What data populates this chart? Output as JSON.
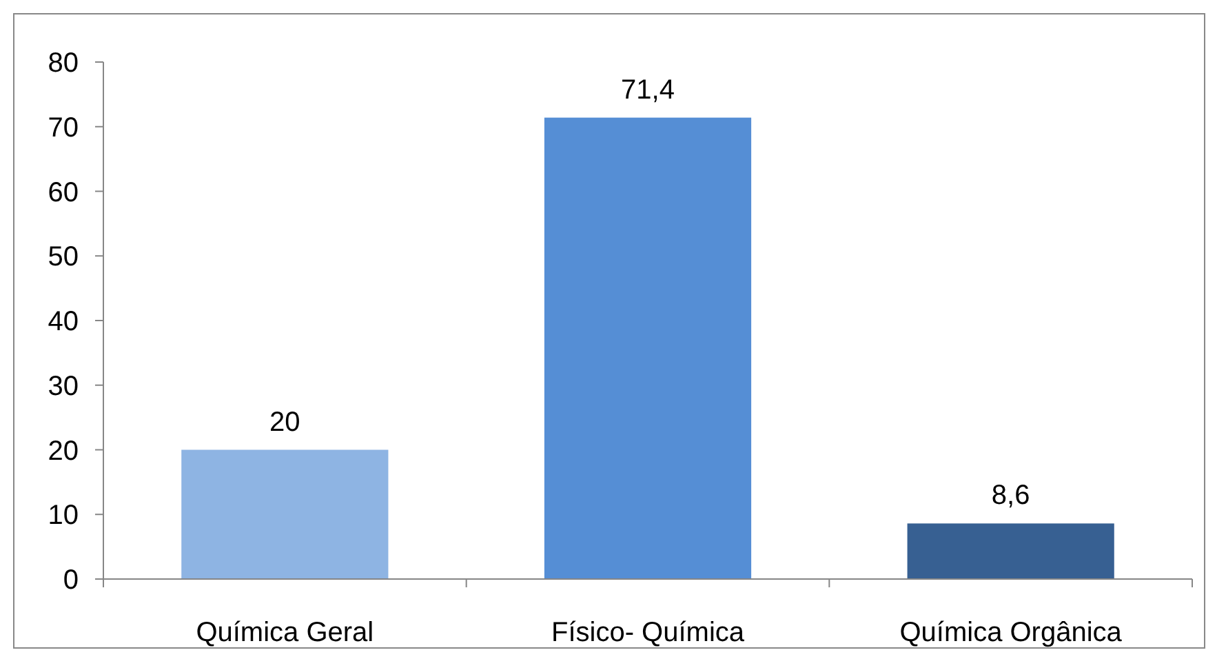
{
  "chart_data": {
    "type": "bar",
    "categories": [
      "Química Geral",
      "Físico- Química",
      "Química Orgânica"
    ],
    "values": [
      20,
      71.4,
      8.6
    ],
    "colors": [
      "#8eb4e3",
      "#558ed5",
      "#376092"
    ],
    "value_labels": [
      "20",
      "71,4",
      "8,6"
    ],
    "ylim": [
      0,
      80
    ],
    "yticks": [
      0,
      10,
      20,
      30,
      40,
      50,
      60,
      70,
      80
    ],
    "grid": false
  }
}
